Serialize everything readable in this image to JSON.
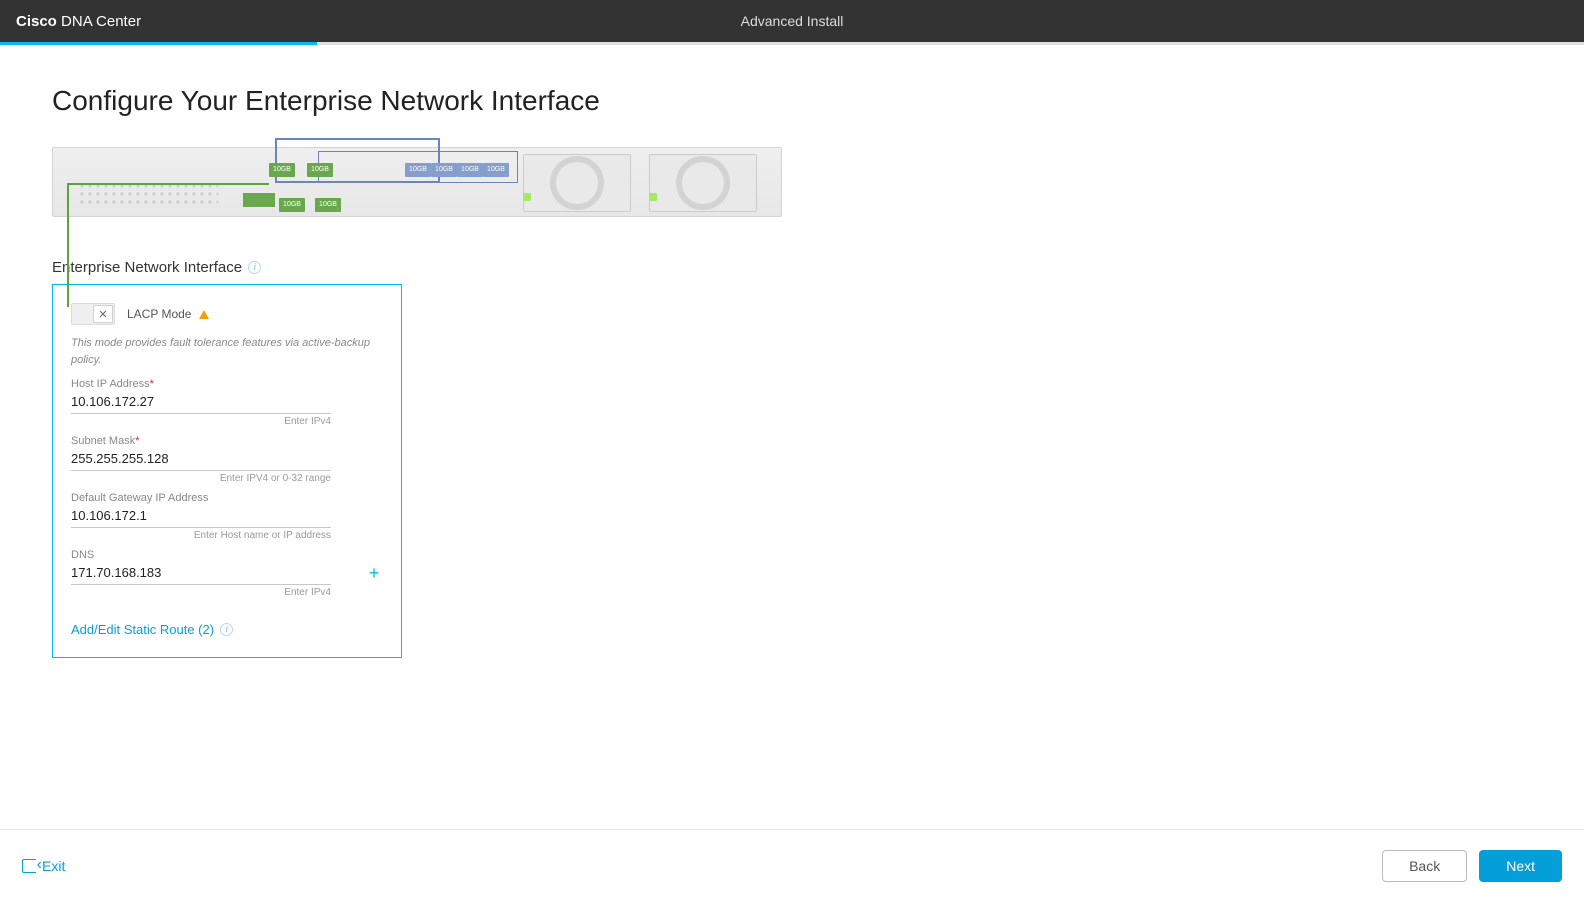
{
  "header": {
    "brand_bold": "Cisco",
    "brand_rest": " DNA Center",
    "title": "Advanced Install"
  },
  "progress": {
    "percent": 20,
    "track_color": "#e0e0e0",
    "fill_color": "#00bceb"
  },
  "page_title": "Configure Your Enterprise Network Interface",
  "appliance": {
    "green_label": "10GB",
    "blue_label": "10GB"
  },
  "section": {
    "label": "Enterprise Network Interface"
  },
  "card": {
    "toggle": {
      "label": "LACP Mode",
      "on": false
    },
    "description": "This mode provides fault tolerance features via active-backup policy.",
    "fields": {
      "host_ip": {
        "label": "Host IP Address",
        "required": true,
        "value": "10.106.172.27",
        "hint": "Enter IPv4"
      },
      "subnet": {
        "label": "Subnet Mask",
        "required": true,
        "value": "255.255.255.128",
        "hint": "Enter IPV4 or 0-32 range"
      },
      "gateway": {
        "label": "Default Gateway IP Address",
        "required": false,
        "value": "10.106.172.1",
        "hint": "Enter Host name or IP address"
      },
      "dns": {
        "label": "DNS",
        "required": false,
        "value": "171.70.168.183",
        "hint": "Enter IPv4"
      }
    },
    "static_route_link": "Add/Edit Static Route (2)"
  },
  "footer": {
    "exit": "Exit",
    "back": "Back",
    "next": "Next"
  },
  "colors": {
    "card_border": "#00bceb",
    "link": "#049fd9",
    "primary": "#049fd9"
  }
}
